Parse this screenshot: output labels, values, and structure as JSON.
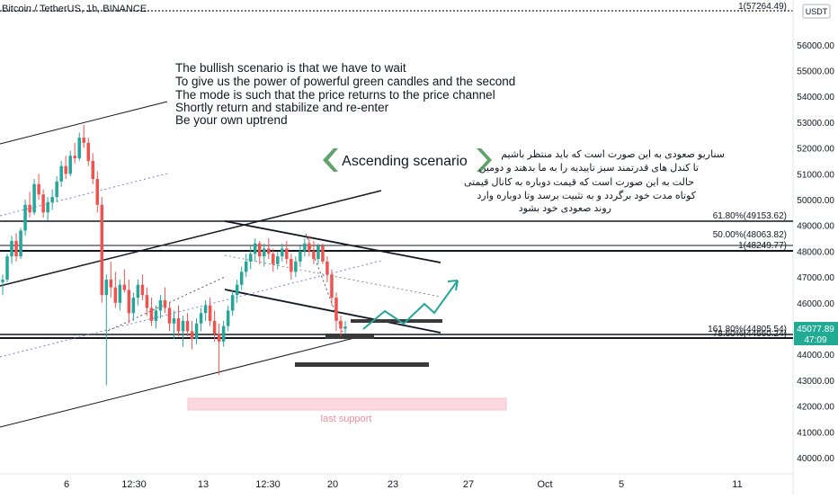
{
  "header": {
    "symbol_title": "Bitcoin / TetherUS, 1h, BINANCE"
  },
  "currency_label": "USDT",
  "price_tag": {
    "price": "45077.89",
    "countdown": "47:09",
    "color": "#22ab94"
  },
  "colors": {
    "up": "#26a69a",
    "down": "#ef5350",
    "arrow": "#26a69a",
    "header_arrow_bg": "#5fa36a",
    "support_box": "#f8c6d0",
    "support_text": "#f28ca0"
  },
  "annotations": {
    "english_lines": [
      "The bullish scenario is that we have to wait",
      "To give us the power of powerful green candles and the second",
      "The mode is such that the price returns to the price channel",
      "Shortly return and stabilize and re-enter",
      "Be your own uptrend"
    ],
    "persian_lines": [
      "سناریو صعودی به این صورت است که باید منتظر باشیم",
      "تا کندل های قدرتمند سبز تاییدیه را به ما بدهند و دومین",
      "حالت به این صورت است که قیمت دوباره به کانال قیمتی",
      "کوتاه مدت خود برگردد و به تثبیت برسد وتا دوباره وارد",
      "روند صعودی خود بشود"
    ],
    "scenario_title": "Ascending scenario",
    "last_support": "last support"
  },
  "chart_data": {
    "type": "candlestick",
    "symbol": "Bitcoin / TetherUS",
    "interval": "1h",
    "exchange": "BINANCE",
    "y_axis": {
      "ticks": [
        40000,
        41000,
        42000,
        43000,
        44000,
        45000,
        46000,
        47000,
        48000,
        49000,
        50000,
        51000,
        52000,
        53000,
        54000,
        55000,
        56000
      ],
      "tick_labels": [
        "40000.00",
        "41000.00",
        "42000.00",
        "43000.00",
        "44000.00",
        "45000.00",
        "46000.00",
        "47000.00",
        "48000.00",
        "49000.00",
        "50000.00",
        "51000.00",
        "52000.00",
        "53000.00",
        "54000.00",
        "55000.00",
        "56000.00"
      ]
    },
    "x_axis": {
      "tick_labels": [
        "6",
        "12:30",
        "13",
        "12:30",
        "20",
        "23",
        "27",
        "Oct",
        "5",
        "11"
      ]
    },
    "levels": [
      {
        "label": "61.80%(49153.62)",
        "price": 49153.62
      },
      {
        "label": "50.00%(48063.82)",
        "price": 48063.82
      },
      {
        "label": "1(48249.77)",
        "price": 48249.77
      },
      {
        "label": "161.80%(44805.54)",
        "price": 44805.54
      },
      {
        "label": "78.60%(44660.24)",
        "price": 44660.24
      },
      {
        "label": "1(57264.49)",
        "price": 57264.49
      }
    ],
    "candles": [
      [
        46800,
        47100,
        46300,
        46900
      ],
      [
        46900,
        47900,
        46800,
        47800
      ],
      [
        47800,
        48600,
        47500,
        48400
      ],
      [
        48400,
        48700,
        47600,
        47800
      ],
      [
        47800,
        48900,
        47700,
        48800
      ],
      [
        48800,
        50000,
        48600,
        49800
      ],
      [
        49800,
        50300,
        49300,
        49500
      ],
      [
        49500,
        50800,
        49400,
        50600
      ],
      [
        50600,
        51000,
        50000,
        50200
      ],
      [
        50200,
        50400,
        49300,
        49500
      ],
      [
        49500,
        50100,
        49200,
        49900
      ],
      [
        49900,
        50400,
        49600,
        50100
      ],
      [
        50100,
        50900,
        49900,
        50700
      ],
      [
        50700,
        51500,
        50500,
        51300
      ],
      [
        51300,
        51700,
        50800,
        51000
      ],
      [
        51000,
        51900,
        50900,
        51700
      ],
      [
        51700,
        52200,
        51400,
        51600
      ],
      [
        51600,
        52600,
        51500,
        52400
      ],
      [
        52400,
        52900,
        52000,
        52200
      ],
      [
        52200,
        52400,
        51300,
        51500
      ],
      [
        51500,
        51800,
        50600,
        50800
      ],
      [
        50800,
        51100,
        49500,
        49800
      ],
      [
        49800,
        50100,
        46000,
        46300
      ],
      [
        46300,
        47100,
        42800,
        46900
      ],
      [
        46900,
        47600,
        46200,
        46600
      ],
      [
        46600,
        47200,
        45800,
        46000
      ],
      [
        46000,
        46900,
        45700,
        46700
      ],
      [
        46700,
        47300,
        46400,
        46500
      ],
      [
        46500,
        46900,
        45200,
        45600
      ],
      [
        45600,
        46400,
        45300,
        46200
      ],
      [
        46200,
        46900,
        45900,
        46700
      ],
      [
        46700,
        47100,
        46100,
        46300
      ],
      [
        46300,
        46600,
        45500,
        45800
      ],
      [
        45800,
        46200,
        45100,
        45300
      ],
      [
        45300,
        45900,
        45000,
        45700
      ],
      [
        45700,
        46300,
        45400,
        46100
      ],
      [
        46100,
        46600,
        45600,
        45800
      ],
      [
        45800,
        46000,
        44900,
        45200
      ],
      [
        45200,
        45700,
        44600,
        45400
      ],
      [
        45400,
        45900,
        44700,
        44900
      ],
      [
        44900,
        45500,
        44300,
        45300
      ],
      [
        45300,
        45600,
        44700,
        44900
      ],
      [
        44900,
        45300,
        44200,
        44600
      ],
      [
        44600,
        45400,
        44400,
        45200
      ],
      [
        45200,
        45800,
        44900,
        45600
      ],
      [
        45600,
        46100,
        45300,
        45900
      ],
      [
        45900,
        46200,
        45100,
        45300
      ],
      [
        45300,
        45700,
        44500,
        44800
      ],
      [
        44800,
        45200,
        43200,
        44500
      ],
      [
        44500,
        45300,
        44300,
        45100
      ],
      [
        45100,
        45900,
        44900,
        45700
      ],
      [
        45700,
        46500,
        45500,
        46300
      ],
      [
        46300,
        46900,
        46000,
        46700
      ],
      [
        46700,
        47400,
        46500,
        47200
      ],
      [
        47200,
        47900,
        47000,
        47600
      ],
      [
        47600,
        48200,
        47300,
        47900
      ],
      [
        47900,
        48500,
        47600,
        48300
      ],
      [
        48300,
        48400,
        47500,
        47800
      ],
      [
        47800,
        48300,
        47400,
        48100
      ],
      [
        48100,
        48500,
        47700,
        47900
      ],
      [
        47900,
        48100,
        47200,
        47500
      ],
      [
        47500,
        48000,
        47300,
        47800
      ],
      [
        47800,
        48300,
        47600,
        48100
      ],
      [
        48100,
        48400,
        47500,
        47700
      ],
      [
        47700,
        47900,
        46900,
        47200
      ],
      [
        47200,
        47800,
        47000,
        47600
      ],
      [
        47600,
        48200,
        47400,
        48000
      ],
      [
        48000,
        48500,
        47800,
        48300
      ],
      [
        48300,
        48600,
        47800,
        48000
      ],
      [
        48000,
        48400,
        47500,
        47700
      ],
      [
        47700,
        48300,
        47500,
        48200
      ],
      [
        48200,
        48300,
        47500,
        47600
      ],
      [
        47600,
        47800,
        46800,
        47100
      ],
      [
        47100,
        47300,
        45900,
        46200
      ],
      [
        46200,
        46400,
        44900,
        45300
      ],
      [
        45300,
        45500,
        44700,
        45000
      ],
      [
        45000,
        45300,
        44800,
        45078
      ]
    ],
    "drawings": {
      "channel_lines_note": "black trend/channel lines, dotted mid lines, horizontal levels, rectangles",
      "projection": [
        [
          0,
          45000
        ],
        [
          1,
          45500
        ],
        [
          2,
          45200
        ],
        [
          3,
          46100
        ],
        [
          4,
          45900
        ],
        [
          5,
          47000
        ]
      ]
    }
  }
}
